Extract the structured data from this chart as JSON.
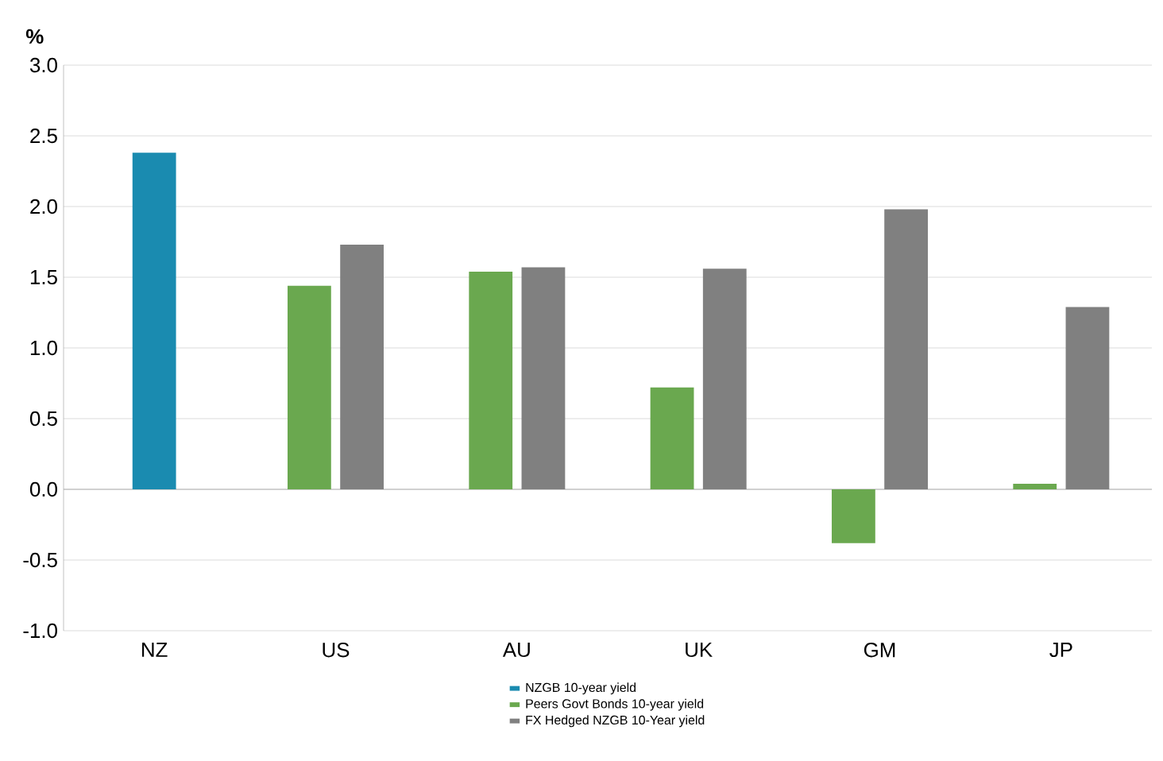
{
  "chart_data": {
    "type": "bar",
    "ylabel": "%",
    "categories": [
      "NZ",
      "US",
      "AU",
      "UK",
      "GM",
      "JP"
    ],
    "series": [
      {
        "name": "NZGB 10-year yield",
        "color": "#1a8bb0",
        "values": [
          2.38,
          null,
          null,
          null,
          null,
          null
        ]
      },
      {
        "name": "Peers Govt Bonds 10-year yield",
        "color": "#6aa84f",
        "values": [
          null,
          1.44,
          1.54,
          0.72,
          -0.38,
          0.04
        ]
      },
      {
        "name": "FX Hedged NZGB 10-Year yield",
        "color": "#808080",
        "values": [
          null,
          1.73,
          1.57,
          1.56,
          1.98,
          1.29
        ]
      }
    ],
    "ylim": [
      -1.0,
      3.0
    ],
    "yticks": [
      {
        "value": -1.0,
        "label": "-1.0"
      },
      {
        "value": -0.5,
        "label": "-0.5"
      },
      {
        "value": 0.0,
        "label": "0.0"
      },
      {
        "value": 0.5,
        "label": "0.5"
      },
      {
        "value": 1.0,
        "label": "1.0"
      },
      {
        "value": 1.5,
        "label": "1.5"
      },
      {
        "value": 2.0,
        "label": "2.0"
      },
      {
        "value": 2.5,
        "label": "2.5"
      },
      {
        "value": 3.0,
        "label": "3.0"
      }
    ],
    "grid": "y",
    "legend": "bottom"
  }
}
